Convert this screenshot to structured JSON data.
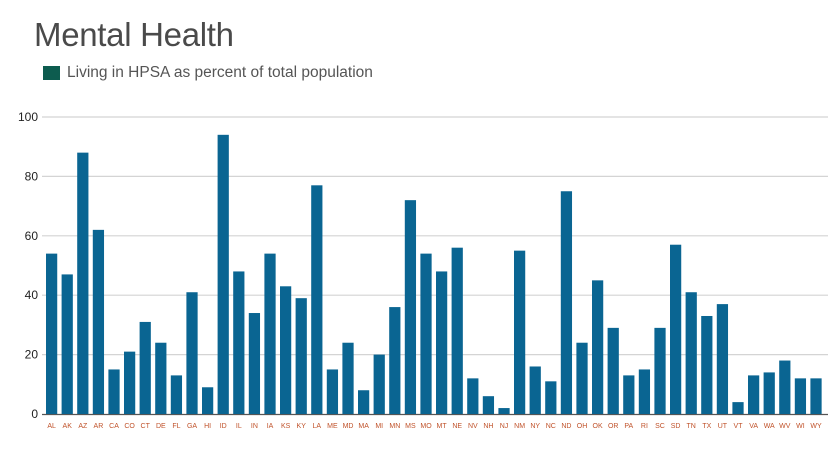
{
  "chart_data": {
    "type": "bar",
    "title": "Mental Health",
    "xlabel": "",
    "ylabel": "",
    "ylim": [
      0,
      100
    ],
    "yticks": [
      0,
      20,
      40,
      60,
      80,
      100
    ],
    "grid": true,
    "legend": {
      "placement": "top-left",
      "entries": [
        {
          "label": "Living in HPSA as percent of total population",
          "color": "#0d5c4f"
        }
      ]
    },
    "categories": [
      "AL",
      "AK",
      "AZ",
      "AR",
      "CA",
      "CO",
      "CT",
      "DE",
      "FL",
      "GA",
      "HI",
      "ID",
      "IL",
      "IN",
      "IA",
      "KS",
      "KY",
      "LA",
      "ME",
      "MD",
      "MA",
      "MI",
      "MN",
      "MS",
      "MO",
      "MT",
      "NE",
      "NV",
      "NH",
      "NJ",
      "NM",
      "NY",
      "NC",
      "ND",
      "OH",
      "OK",
      "OR",
      "PA",
      "RI",
      "SC",
      "SD",
      "TN",
      "TX",
      "UT",
      "VT",
      "VA",
      "WA",
      "WV",
      "WI",
      "WY"
    ],
    "series": [
      {
        "name": "Living in HPSA as percent of total population",
        "values": [
          54,
          47,
          88,
          62,
          15,
          21,
          31,
          24,
          13,
          41,
          9,
          94,
          48,
          34,
          54,
          43,
          39,
          77,
          15,
          24,
          8,
          20,
          36,
          72,
          54,
          48,
          56,
          12,
          6,
          2,
          55,
          16,
          11,
          75,
          24,
          45,
          29,
          13,
          15,
          29,
          57,
          41,
          33,
          37,
          4,
          13,
          14,
          18,
          12,
          12
        ]
      }
    ],
    "colors": {
      "bar": "#0a6592",
      "category_label": "#c0522a",
      "gridline": "#d4d4d4",
      "axis": "#555555"
    }
  }
}
